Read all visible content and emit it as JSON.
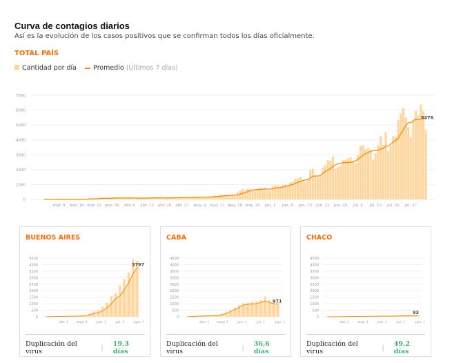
{
  "header": {
    "title": "Curva de contagios diarios",
    "subtitle": "Así es la evolución de los casos positivos que se confirman todos los días oficialmente.",
    "section": "TOTAL PAÍS"
  },
  "legend": {
    "bars": "Cantidad por día",
    "line": "Promedio",
    "line_note": "(Últimos 7 días)"
  },
  "colors": {
    "bar": "#ffd59c",
    "line": "#ff8a00",
    "accent": "#ff6d00",
    "good": "#3cb371"
  },
  "chart_data": [
    {
      "type": "bar",
      "title": "TOTAL PAÍS",
      "start": "mar 3",
      "ylim": [
        0,
        7000
      ],
      "yticks": [
        0,
        1000,
        2000,
        3000,
        4000,
        5000,
        6000,
        7000
      ],
      "xticks": [
        {
          "label": "mar. 9",
          "day": 6
        },
        {
          "label": "mar. 16",
          "day": 13
        },
        {
          "label": "mar. 23",
          "day": 20
        },
        {
          "label": "mar. 30",
          "day": 27
        },
        {
          "label": "abr. 6",
          "day": 34
        },
        {
          "label": "abr. 13",
          "day": 41
        },
        {
          "label": "abr. 20",
          "day": 48
        },
        {
          "label": "abr. 27",
          "day": 55
        },
        {
          "label": "may. 4",
          "day": 62
        },
        {
          "label": "may. 11",
          "day": 69
        },
        {
          "label": "may. 18",
          "day": 76
        },
        {
          "label": "may. 25",
          "day": 83
        },
        {
          "label": "jun. 1",
          "day": 90
        },
        {
          "label": "jun. 8",
          "day": 97
        },
        {
          "label": "jun. 15",
          "day": 104
        },
        {
          "label": "jun. 22",
          "day": 111
        },
        {
          "label": "jun. 29",
          "day": 118
        },
        {
          "label": "jul. 6",
          "day": 125
        },
        {
          "label": "jul. 13",
          "day": 132
        },
        {
          "label": "jul. 20",
          "day": 139
        },
        {
          "label": "jul. 27",
          "day": 146
        }
      ],
      "last_label": "5376",
      "daily": [
        1,
        0,
        1,
        2,
        4,
        0,
        3,
        5,
        2,
        10,
        3,
        13,
        11,
        11,
        18,
        14,
        31,
        30,
        97,
        67,
        41,
        35,
        86,
        115,
        87,
        101,
        75,
        55,
        146,
        88,
        132,
        98,
        79,
        88,
        126,
        77,
        82,
        105,
        70,
        79,
        113,
        89,
        144,
        113,
        142,
        100,
        83,
        90,
        69,
        111,
        143,
        145,
        163,
        124,
        117,
        104,
        130,
        158,
        160,
        137,
        155,
        112,
        159,
        166,
        160,
        170,
        202,
        208,
        252,
        182,
        308,
        300,
        316,
        306,
        300,
        254,
        212,
        470,
        600,
        706,
        648,
        718,
        723,
        587,
        601,
        703,
        795,
        732,
        797,
        600,
        564,
        904,
        949,
        929,
        841,
        983,
        1000,
        900,
        1141,
        1226,
        1393,
        1391,
        1531,
        1282,
        1208,
        1374,
        1958,
        2060,
        1634,
        1481,
        1581,
        2146,
        2285,
        2635,
        2606,
        2886,
        2060,
        2189,
        2262,
        2632,
        2667,
        2744,
        2845,
        2590,
        2439,
        2979,
        3604,
        3663,
        3367,
        3449,
        3221,
        2657,
        3099,
        3645,
        4250,
        3645,
        4518,
        3223,
        3569,
        4257,
        4231,
        5344,
        5782,
        6127,
        5493,
        4860,
        4195,
        5302,
        5935,
        5641,
        6377,
        5929,
        4688
      ]
    },
    {
      "type": "area",
      "title": "BUENOS AIRES",
      "ylim": [
        0,
        4500
      ],
      "last_label": "3797",
      "values": [
        2,
        10,
        20,
        30,
        35,
        40,
        45,
        50,
        60,
        70,
        150,
        250,
        320,
        450,
        700,
        1000,
        1400,
        1600,
        2100,
        2600,
        3300,
        3797
      ],
      "peaks": [
        3,
        15,
        30,
        40,
        45,
        50,
        55,
        60,
        80,
        100,
        250,
        400,
        500,
        800,
        1100,
        1600,
        1800,
        2400,
        2900,
        3400,
        4400,
        4300
      ]
    },
    {
      "type": "area",
      "title": "CABA",
      "ylim": [
        0,
        4500
      ],
      "last_label": "971",
      "values": [
        2,
        20,
        40,
        50,
        60,
        70,
        80,
        100,
        150,
        250,
        400,
        550,
        700,
        900,
        950,
        1000,
        1000,
        1100,
        1200,
        1100,
        1000,
        971
      ],
      "peaks": [
        4,
        30,
        60,
        70,
        80,
        90,
        110,
        140,
        220,
        320,
        520,
        700,
        880,
        1050,
        1100,
        1150,
        1200,
        1300,
        1550,
        1300,
        1250,
        1100
      ]
    },
    {
      "type": "area",
      "title": "CHACO",
      "ylim": [
        0,
        4500
      ],
      "last_label": "93",
      "values": [
        0,
        2,
        5,
        10,
        15,
        20,
        25,
        30,
        30,
        35,
        40,
        40,
        45,
        50,
        50,
        55,
        60,
        65,
        70,
        75,
        80,
        93
      ],
      "peaks": [
        0,
        4,
        8,
        15,
        25,
        30,
        35,
        40,
        40,
        45,
        50,
        55,
        60,
        60,
        65,
        70,
        75,
        80,
        90,
        95,
        100,
        110
      ]
    }
  ],
  "small_axis": {
    "yticks": [
      0,
      500,
      1000,
      1500,
      2000,
      2500,
      3000,
      3500,
      4000,
      4500
    ],
    "xticks": [
      {
        "label": "abr. 1",
        "week": 4
      },
      {
        "label": "may. 1",
        "week": 8.3
      },
      {
        "label": "jun. 1",
        "week": 12.7
      },
      {
        "label": "jul. 1",
        "week": 17
      },
      {
        "label": "ago. 1",
        "week": 21.4
      }
    ]
  },
  "cards": [
    {
      "title": "BUENOS AIRES",
      "label": "Duplicación del virus",
      "value": "19,3 días"
    },
    {
      "title": "CABA",
      "label": "Duplicación del virus",
      "value": "36,6 días"
    },
    {
      "title": "CHACO",
      "label": "Duplicación del virus",
      "value": "49,2 días"
    }
  ]
}
